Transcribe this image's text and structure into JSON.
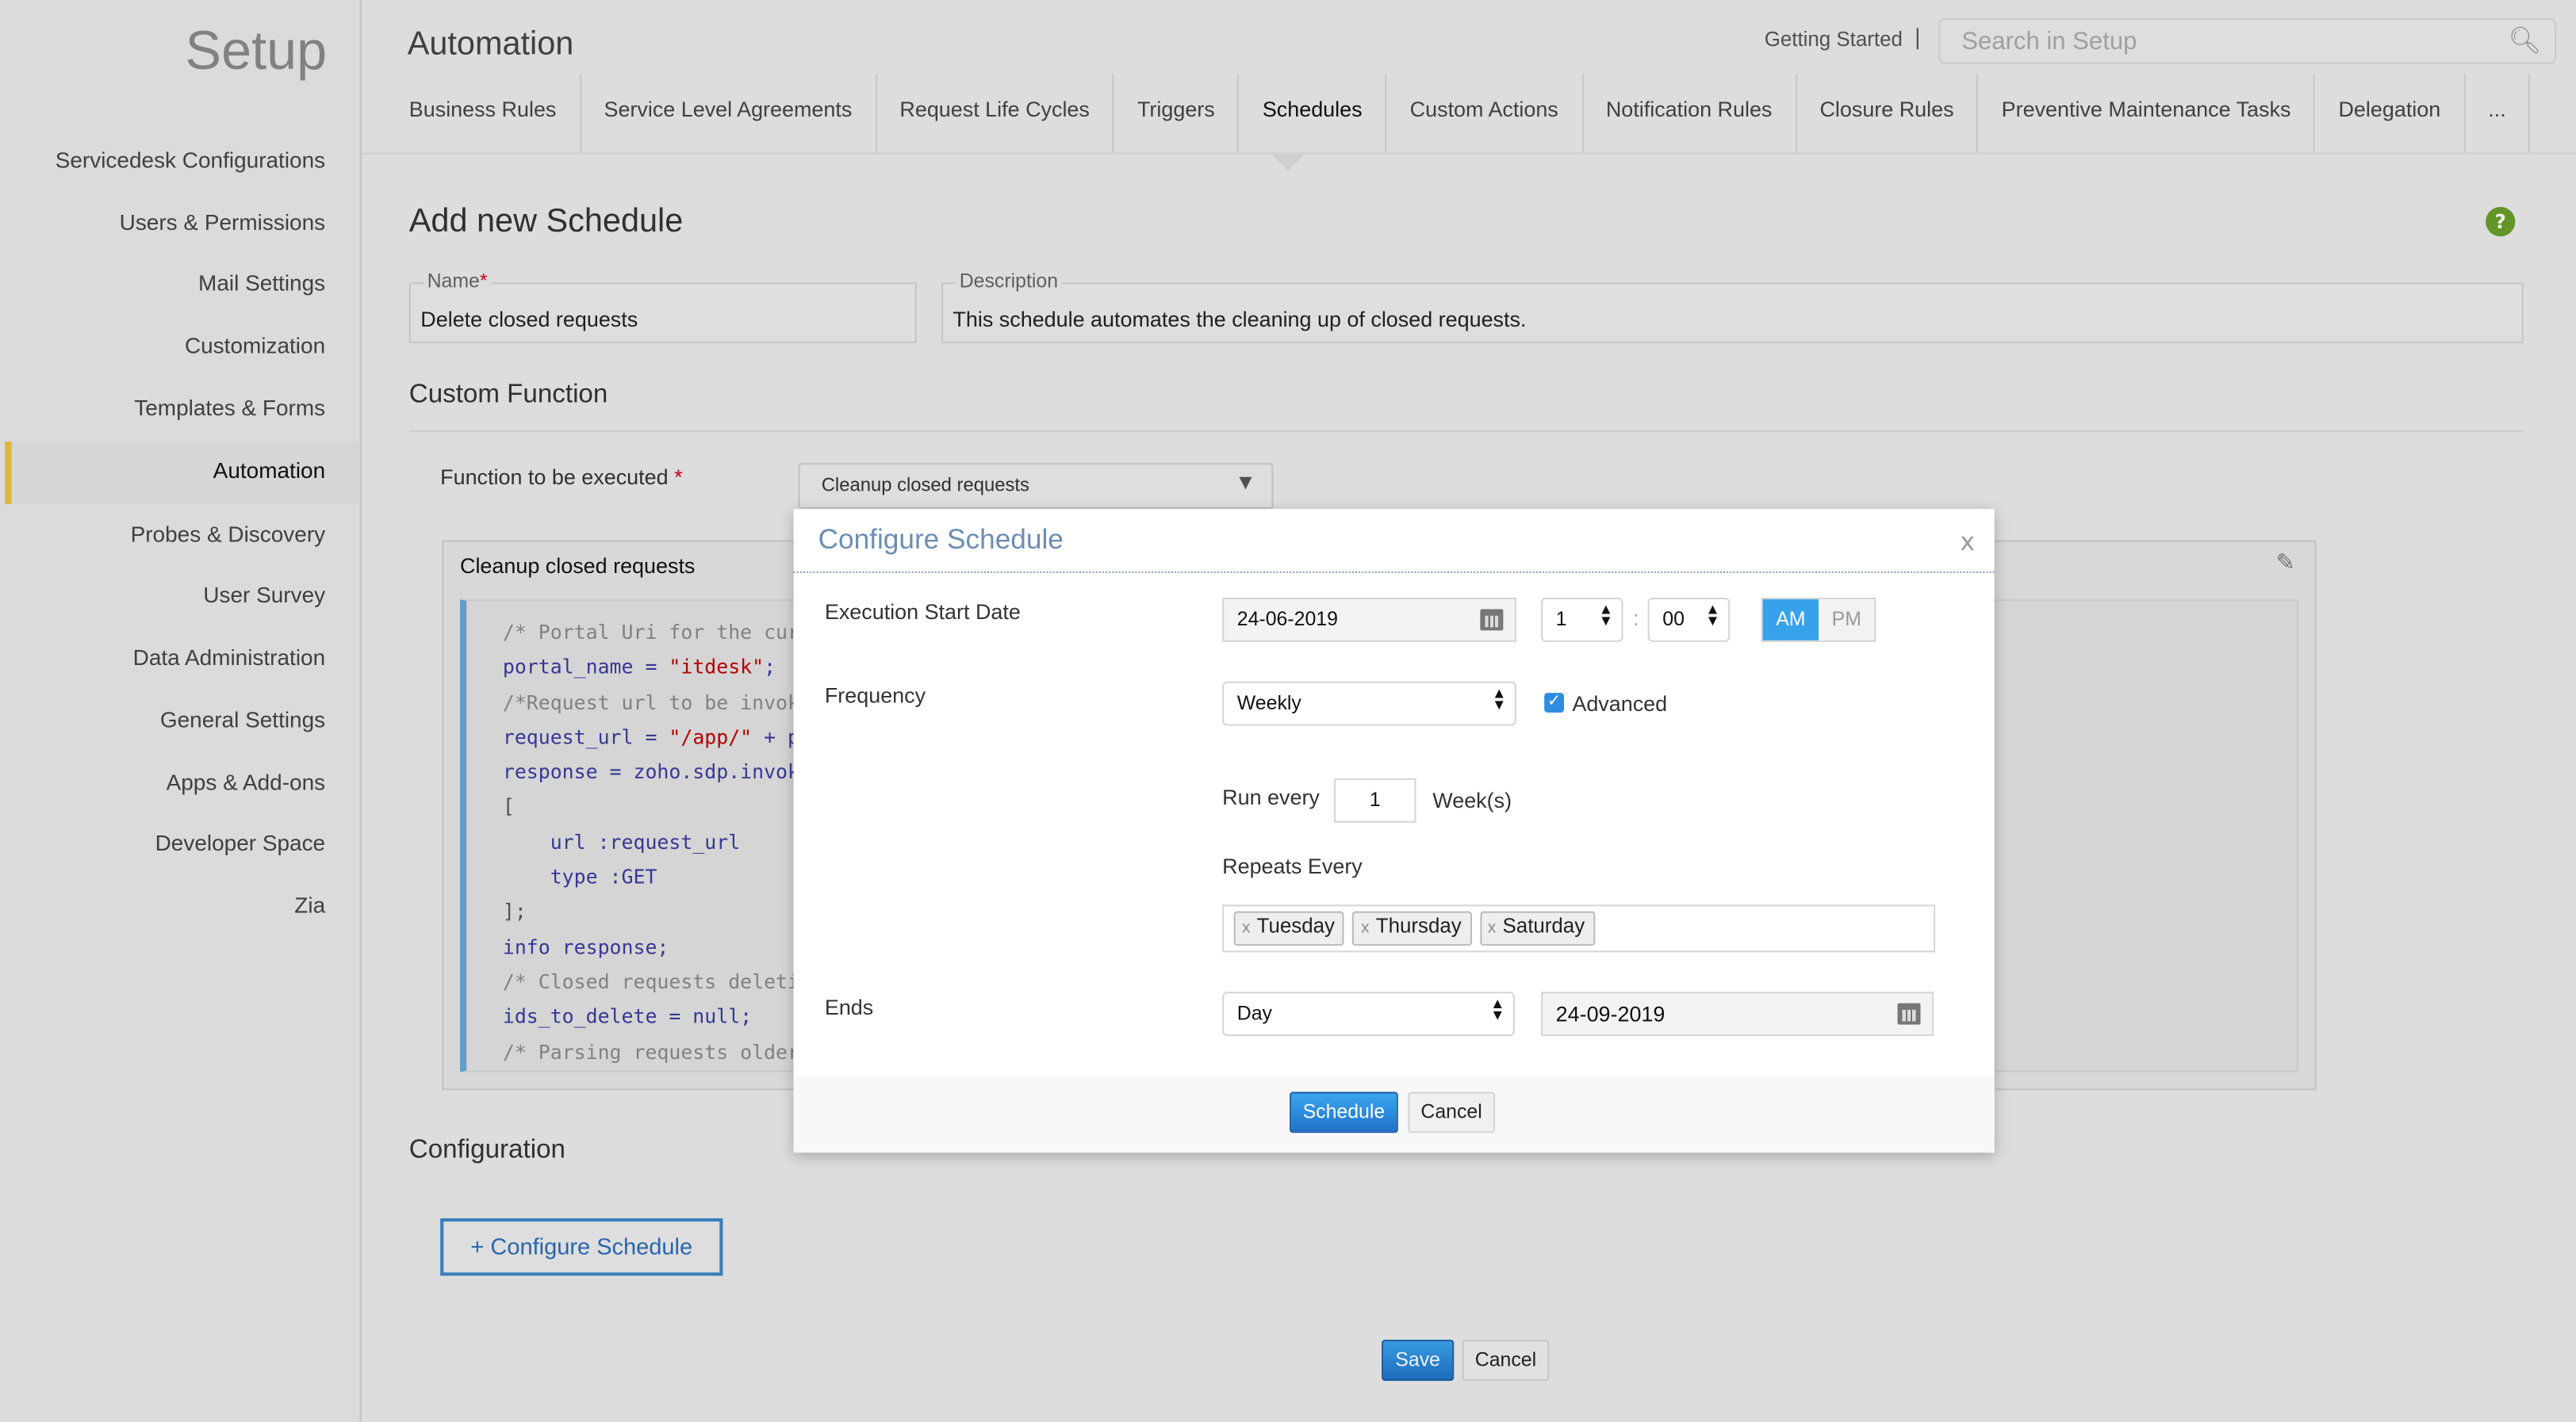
{
  "sidebar": {
    "title": "Setup",
    "items": [
      {
        "label": "Servicedesk Configurations"
      },
      {
        "label": "Users & Permissions"
      },
      {
        "label": "Mail Settings"
      },
      {
        "label": "Customization"
      },
      {
        "label": "Templates & Forms"
      },
      {
        "label": "Automation",
        "active": true
      },
      {
        "label": "Probes & Discovery"
      },
      {
        "label": "User Survey"
      },
      {
        "label": "Data Administration"
      },
      {
        "label": "General Settings"
      },
      {
        "label": "Apps & Add-ons"
      },
      {
        "label": "Developer Space"
      },
      {
        "label": "Zia"
      }
    ],
    "active_color": "#f0c040"
  },
  "header": {
    "title": "Automation",
    "getting_started": "Getting Started",
    "separator": "|",
    "search_placeholder": "Search in Setup",
    "search_icon": "search-icon"
  },
  "tabs": [
    {
      "label": "Business Rules"
    },
    {
      "label": "Service Level Agreements"
    },
    {
      "label": "Request Life Cycles"
    },
    {
      "label": "Triggers"
    },
    {
      "label": "Schedules",
      "active": true
    },
    {
      "label": "Custom Actions"
    },
    {
      "label": "Notification Rules"
    },
    {
      "label": "Closure Rules"
    },
    {
      "label": "Preventive Maintenance Tasks"
    },
    {
      "label": "Delegation"
    },
    {
      "label": "..."
    }
  ],
  "form": {
    "title": "Add new Schedule",
    "help_icon": "?",
    "name_label": "Name",
    "required_mark": "*",
    "name_value": "Delete closed requests",
    "description_label": "Description",
    "description_value": "This schedule automates the cleaning up of closed requests.",
    "custom_function_heading": "Custom Function",
    "function_label": "Function to be executed",
    "function_value": "Cleanup closed requests",
    "code_title": "Cleanup closed requests",
    "code_lines": [
      [
        {
          "t": "/* Portal Uri for the curr",
          "c": "cm"
        }
      ],
      [
        {
          "t": "portal_name = ",
          "c": ""
        },
        {
          "t": "\"itdesk\"",
          "c": "st"
        },
        {
          "t": ";",
          "c": ""
        }
      ],
      [
        {
          "t": "/*Request url to be invok",
          "c": "cm"
        }
      ],
      [
        {
          "t": "request_url = ",
          "c": ""
        },
        {
          "t": "\"/app/\"",
          "c": "st"
        },
        {
          "t": " + po",
          "c": ""
        }
      ],
      [
        {
          "t": "response = zoho.sdp.invok",
          "c": ""
        }
      ],
      [
        {
          "t": "[",
          "c": "pl"
        }
      ],
      [
        {
          "t": "    url :request_url",
          "c": ""
        }
      ],
      [
        {
          "t": "    type :GET",
          "c": ""
        }
      ],
      [
        {
          "t": "];",
          "c": "pl"
        }
      ],
      [
        {
          "t": "info response;",
          "c": ""
        }
      ],
      [
        {
          "t": "/* Closed requests deleti",
          "c": "cm"
        }
      ],
      [
        {
          "t": "ids_to_delete = null;",
          "c": ""
        }
      ],
      [
        {
          "t": "/* Parsing requests older",
          "c": "cm"
        }
      ]
    ],
    "configuration_heading": "Configuration",
    "configure_button": "+ Configure Schedule",
    "save": "Save",
    "cancel": "Cancel"
  },
  "modal": {
    "title": "Configure Schedule",
    "close": "x",
    "start_date_label": "Execution Start Date",
    "start_date": "24-06-2019",
    "hour": "1",
    "time_sep": ":",
    "minute": "00",
    "am": "AM",
    "pm": "PM",
    "selected_meridiem": "AM",
    "frequency_label": "Frequency",
    "frequency": "Weekly",
    "advanced_label": "Advanced",
    "advanced_checked": true,
    "run_every_label": "Run every",
    "run_every_value": "1",
    "run_every_unit": "Week(s)",
    "repeats_label": "Repeats Every",
    "repeat_days": [
      "Tuesday",
      "Thursday",
      "Saturday"
    ],
    "tag_remove": "x",
    "ends_label": "Ends",
    "ends_type": "Day",
    "end_date": "24-09-2019",
    "schedule_button": "Schedule",
    "cancel_button": "Cancel",
    "accent": "#37a2ea"
  }
}
